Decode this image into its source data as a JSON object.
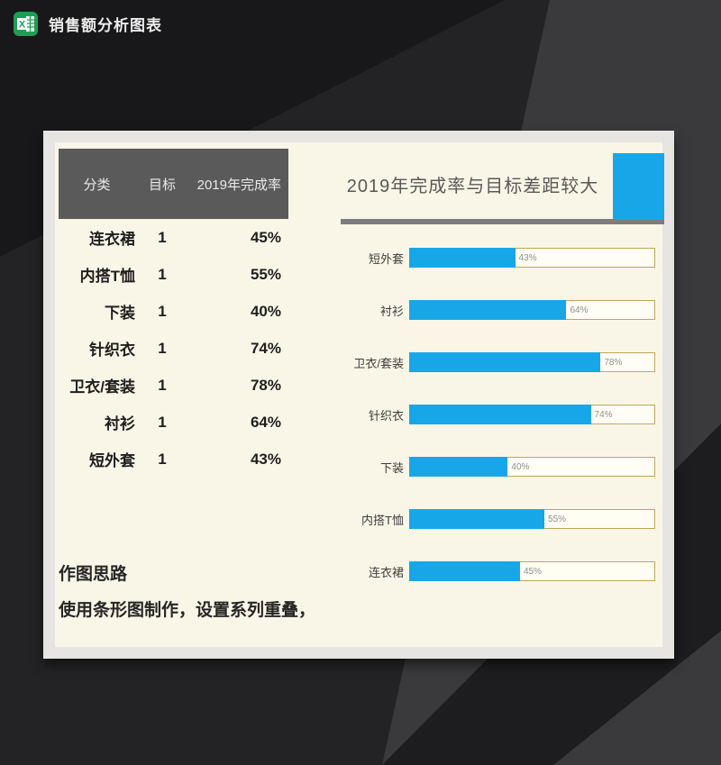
{
  "window": {
    "title": "销售额分析图表",
    "app_icon": "excel-icon"
  },
  "panel": {
    "table": {
      "headers": [
        "分类",
        "目标",
        "2019年完成率"
      ],
      "rows": [
        {
          "category": "连衣裙",
          "target": "1",
          "rate": "45%"
        },
        {
          "category": "内搭T恤",
          "target": "1",
          "rate": "55%"
        },
        {
          "category": "下装",
          "target": "1",
          "rate": "40%"
        },
        {
          "category": "针织衣",
          "target": "1",
          "rate": "74%"
        },
        {
          "category": "卫衣/套装",
          "target": "1",
          "rate": "78%"
        },
        {
          "category": "衬衫",
          "target": "1",
          "rate": "64%"
        },
        {
          "category": "短外套",
          "target": "1",
          "rate": "43%"
        }
      ]
    },
    "notes": {
      "line1": "作图思路",
      "line2": "使用条形图制作，设置系列重叠，"
    }
  },
  "chart_data": {
    "type": "bar",
    "orientation": "horizontal",
    "title": "2019年完成率与目标差距较大",
    "categories": [
      "短外套",
      "衬衫",
      "卫衣/套装",
      "针织衣",
      "下装",
      "内搭T恤",
      "连衣裙"
    ],
    "series": [
      {
        "name": "目标",
        "values": [
          1,
          1,
          1,
          1,
          1,
          1,
          1
        ]
      },
      {
        "name": "2019年完成率",
        "values": [
          0.43,
          0.64,
          0.78,
          0.74,
          0.4,
          0.55,
          0.45
        ]
      }
    ],
    "data_labels": [
      "43%",
      "64%",
      "78%",
      "74%",
      "40%",
      "55%",
      "45%"
    ],
    "xlim": [
      0,
      1
    ],
    "grid": false,
    "legend": false
  },
  "colors": {
    "accent_blue": "#17a7e8",
    "table_header_bg": "#5a5a5a",
    "panel_bg": "#faf6e7",
    "panel_frame": "#e6e5e3",
    "track_border_gold": "#bfa75a",
    "title_underline_gray": "#7d7d7d",
    "chart_title_text": "#595959",
    "excel_green": "#1f9d55"
  }
}
